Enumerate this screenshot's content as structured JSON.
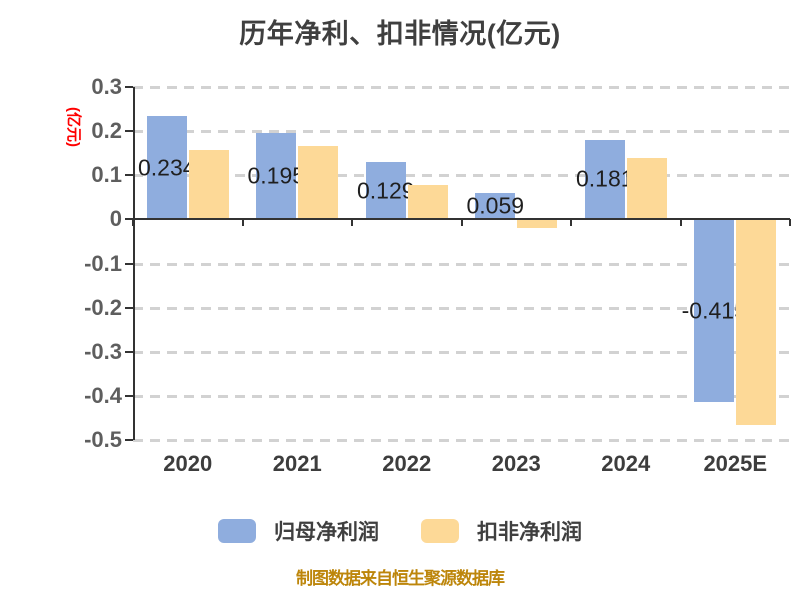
{
  "header": {
    "title": "历年净利、扣非情况(亿元)"
  },
  "footer": {
    "source_note": "制图数据来自恒生聚源数据库"
  },
  "colors": {
    "series_blue": "#8fadde",
    "series_yellow": "#fdd997",
    "axis": "#333333",
    "gridline": "#d2d2d2",
    "title_text": "#3f3f3f",
    "y_unit_label": "#ff0000",
    "footer_text": "#bd860b"
  },
  "chart_data": {
    "type": "bar",
    "title": "历年净利、扣非情况(亿元)",
    "ylabel": "(亿元)",
    "categories": [
      "2020",
      "2021",
      "2022",
      "2023",
      "2024",
      "2025E"
    ],
    "series": [
      {
        "name": "归母净利润",
        "slug": "net-profit",
        "color": "#8fadde",
        "values": [
          0.234,
          0.195,
          0.129,
          0.059,
          0.181,
          -0.415
        ],
        "labels": [
          "0.234",
          "0.195",
          "0.129",
          "0.059",
          "0.181",
          "-0.415"
        ]
      },
      {
        "name": "扣非净利润",
        "slug": "non-recurring-profit",
        "color": "#fdd997",
        "values": [
          0.158,
          0.167,
          0.078,
          -0.02,
          0.14,
          -0.465
        ]
      }
    ],
    "ylim": [
      -0.5,
      0.3
    ],
    "yticks": [
      "0.3",
      "0.2",
      "0.1",
      "0",
      "-0.1",
      "-0.2",
      "-0.3",
      "-0.4",
      "-0.5"
    ],
    "grid": true,
    "grid_style": "dashed",
    "legend_position": "bottom",
    "footer": "制图数据来自恒生聚源数据库"
  }
}
